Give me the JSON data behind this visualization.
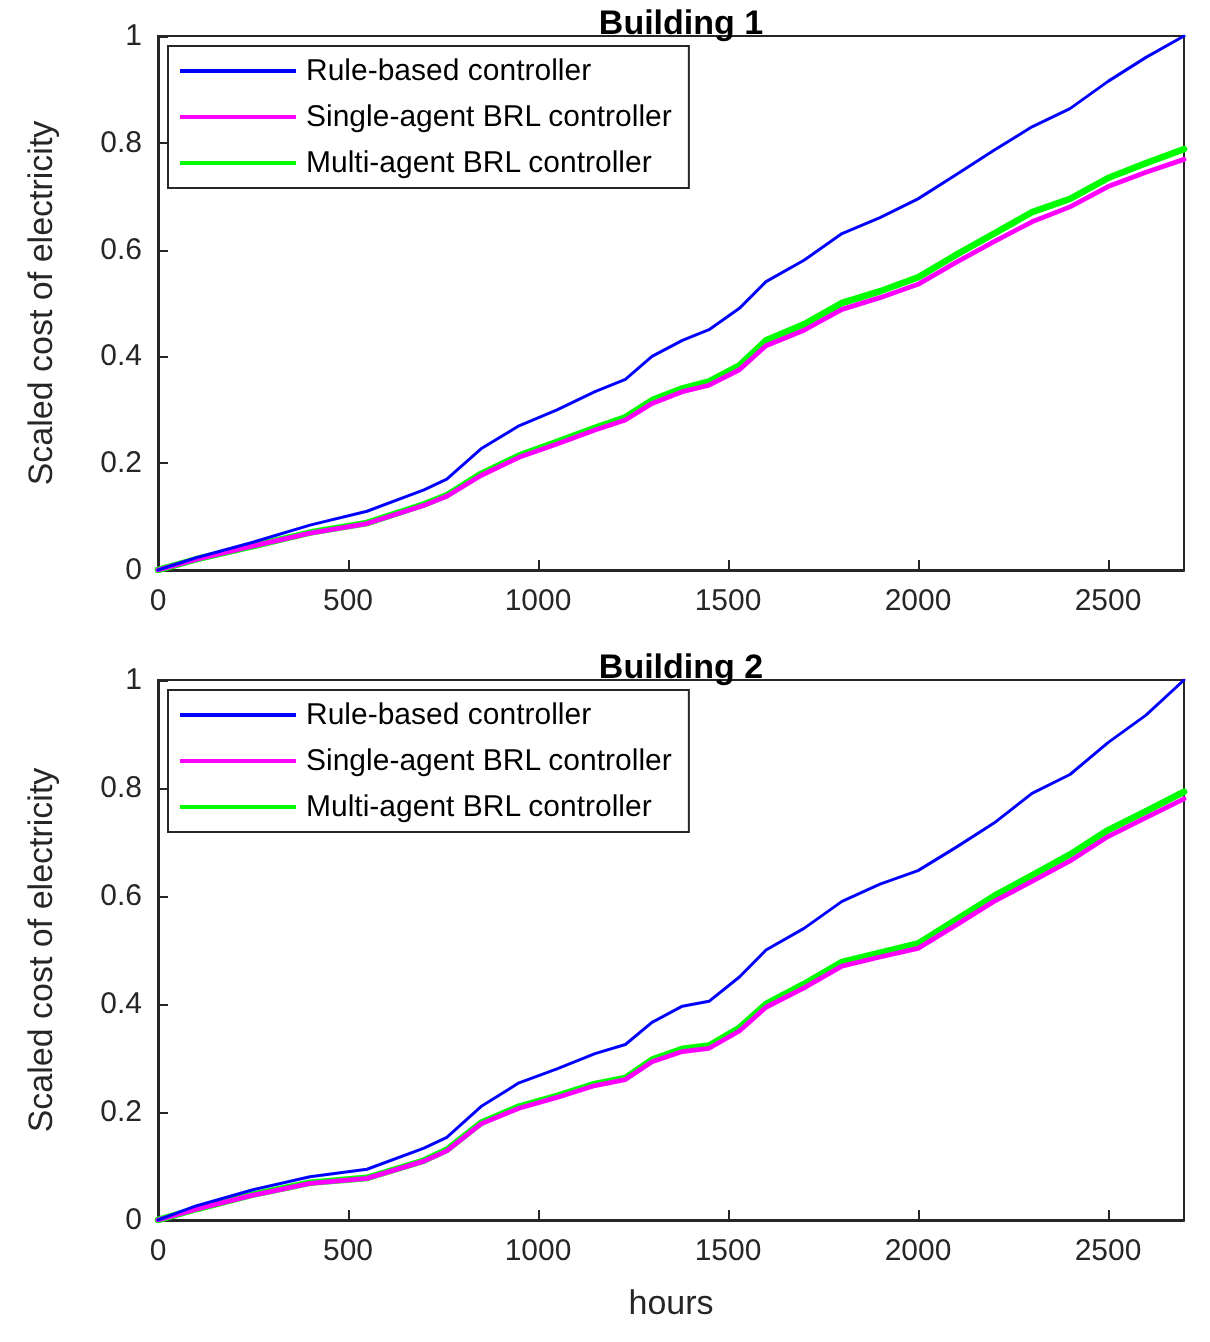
{
  "chart_data": [
    {
      "type": "line",
      "title": "Building 1",
      "ylabel": "Scaled cost of electricity",
      "x": [
        0,
        100,
        250,
        400,
        550,
        700,
        760,
        850,
        950,
        1050,
        1150,
        1230,
        1300,
        1380,
        1450,
        1530,
        1600,
        1700,
        1800,
        1900,
        2000,
        2100,
        2200,
        2300,
        2400,
        2500,
        2600,
        2700
      ],
      "series": [
        {
          "name": "Rule-based controller",
          "color": "#0000ff",
          "values": [
            0,
            0.023,
            0.052,
            0.084,
            0.11,
            0.15,
            0.17,
            0.227,
            0.27,
            0.3,
            0.334,
            0.357,
            0.4,
            0.43,
            0.45,
            0.49,
            0.54,
            0.58,
            0.63,
            0.66,
            0.695,
            0.74,
            0.786,
            0.83,
            0.864,
            0.915,
            0.96,
            1.0
          ]
        },
        {
          "name": "Single-agent BRL controller",
          "color": "#ff00ff",
          "values": [
            0,
            0.02,
            0.045,
            0.069,
            0.087,
            0.121,
            0.138,
            0.177,
            0.211,
            0.236,
            0.262,
            0.281,
            0.312,
            0.334,
            0.346,
            0.375,
            0.42,
            0.449,
            0.488,
            0.51,
            0.535,
            0.576,
            0.615,
            0.652,
            0.68,
            0.718,
            0.745,
            0.769
          ]
        },
        {
          "name": "Multi-agent BRL controller",
          "color": "#00ff00",
          "values": [
            0,
            0.02,
            0.045,
            0.07,
            0.088,
            0.123,
            0.14,
            0.18,
            0.214,
            0.24,
            0.266,
            0.286,
            0.318,
            0.34,
            0.353,
            0.383,
            0.43,
            0.46,
            0.5,
            0.522,
            0.548,
            0.59,
            0.63,
            0.67,
            0.695,
            0.734,
            0.762,
            0.788
          ]
        }
      ],
      "xlim": [
        0,
        2700
      ],
      "xticks": [
        0,
        500,
        1000,
        1500,
        2000,
        2500
      ],
      "ylim": [
        0,
        1
      ],
      "yticks": [
        0,
        0.2,
        0.4,
        0.6,
        0.8,
        1
      ],
      "legend": "top left",
      "grid": false,
      "marker": "none",
      "line_style": "solid"
    },
    {
      "type": "line",
      "title": "Building 2",
      "xlabel": "hours",
      "ylabel": "Scaled cost of electricity",
      "x": [
        0,
        100,
        250,
        400,
        550,
        700,
        760,
        850,
        950,
        1050,
        1150,
        1230,
        1300,
        1380,
        1450,
        1530,
        1600,
        1700,
        1800,
        1900,
        2000,
        2100,
        2200,
        2300,
        2400,
        2500,
        2600,
        2700
      ],
      "series": [
        {
          "name": "Rule-based controller",
          "color": "#0000ff",
          "values": [
            0,
            0.026,
            0.056,
            0.08,
            0.094,
            0.133,
            0.153,
            0.21,
            0.254,
            0.28,
            0.308,
            0.325,
            0.366,
            0.396,
            0.405,
            0.45,
            0.5,
            0.54,
            0.59,
            0.622,
            0.647,
            0.69,
            0.735,
            0.79,
            0.825,
            0.884,
            0.935,
            1.0
          ]
        },
        {
          "name": "Single-agent BRL controller",
          "color": "#ff00ff",
          "values": [
            0,
            0.02,
            0.046,
            0.068,
            0.077,
            0.109,
            0.128,
            0.178,
            0.207,
            0.227,
            0.249,
            0.26,
            0.293,
            0.312,
            0.318,
            0.35,
            0.394,
            0.43,
            0.47,
            0.487,
            0.503,
            0.546,
            0.59,
            0.627,
            0.665,
            0.71,
            0.745,
            0.78
          ]
        },
        {
          "name": "Multi-agent BRL controller",
          "color": "#00ff00",
          "values": [
            0,
            0.02,
            0.047,
            0.069,
            0.078,
            0.11,
            0.13,
            0.18,
            0.21,
            0.23,
            0.252,
            0.263,
            0.297,
            0.317,
            0.323,
            0.356,
            0.4,
            0.437,
            0.478,
            0.495,
            0.512,
            0.556,
            0.6,
            0.638,
            0.677,
            0.722,
            0.757,
            0.793
          ]
        }
      ],
      "xlim": [
        0,
        2700
      ],
      "xticks": [
        0,
        500,
        1000,
        1500,
        2000,
        2500
      ],
      "ylim": [
        0,
        1
      ],
      "yticks": [
        0,
        0.2,
        0.4,
        0.6,
        0.8,
        1
      ],
      "legend": "top left",
      "grid": false,
      "marker": "none",
      "line_style": "solid"
    }
  ]
}
